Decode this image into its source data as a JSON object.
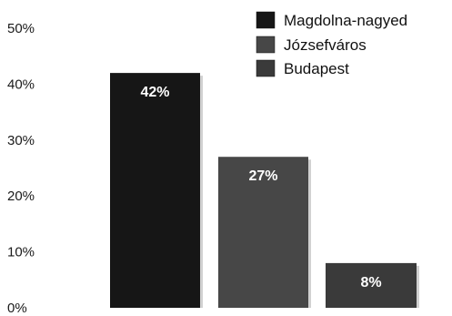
{
  "chart_data": {
    "type": "bar",
    "categories": [
      "Magdolna-nagyed",
      "Józsefváros",
      "Budapest"
    ],
    "values": [
      42,
      27,
      8
    ],
    "data_labels": [
      "42%",
      "27%",
      "8%"
    ],
    "colors": [
      "#161616",
      "#474747",
      "#3a3a3a"
    ],
    "ylim": [
      0,
      50
    ],
    "yticks": [
      0,
      10,
      20,
      30,
      40,
      50
    ],
    "ytick_labels": [
      "0%",
      "10%",
      "20%",
      "30%",
      "40%",
      "50%"
    ],
    "grid": false,
    "legend": {
      "position": "top-right",
      "entries": [
        "Magdolna-nagyed",
        "Józsefváros",
        "Budapest"
      ]
    }
  }
}
